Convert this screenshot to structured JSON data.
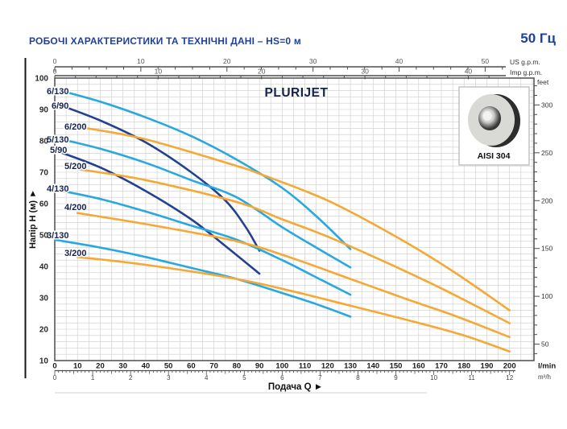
{
  "header": {
    "title": "РОБОЧІ ХАРАКТЕРИСТИКИ ТА ТЕХНІЧНІ ДАНІ  –  HS=0 м",
    "frequency": "50 Гц"
  },
  "aisi_box": {
    "label": "AISI 304"
  },
  "colors": {
    "brand_blue": "#21409a",
    "light_blue": "#29a8e0",
    "dark_blue": "#24418f",
    "orange": "#f6a835",
    "grid": "#cccccc",
    "frame": "#4d4d4d",
    "curve_label": "#15224d",
    "tick_dark": "#1a1a1a",
    "tick_gray": "#555555"
  },
  "chart_data": {
    "type": "line",
    "title": "PLURIJET",
    "xlabel": "Подача Q ►",
    "ylabel": "Напір H (м) ►",
    "x_unit_primary": "l/min",
    "x_range_lmin": [
      0,
      200
    ],
    "ylim_m": [
      10,
      100
    ],
    "grid": "on",
    "axes": {
      "top_us_gpm": {
        "unit": "US g.p.m.",
        "labeled_ticks": [
          0,
          10,
          20,
          30,
          40,
          50
        ],
        "minor_step": 2,
        "minor_max": 52
      },
      "top_imp_gpm": {
        "unit": "Imp g.p.m.",
        "labeled_ticks": [
          0,
          10,
          20,
          30,
          40
        ],
        "minor_step": 2,
        "minor_max": 43
      },
      "bottom_lmin": {
        "unit": "l/min",
        "labeled_ticks": [
          0,
          10,
          20,
          30,
          40,
          50,
          60,
          70,
          80,
          90,
          100,
          110,
          120,
          130,
          140,
          150,
          160,
          170,
          180,
          190,
          200
        ]
      },
      "bottom_m3h": {
        "unit": "m³/h",
        "labeled_ticks": [
          0,
          1,
          2,
          3,
          4,
          5,
          6,
          7,
          8,
          9,
          10,
          11,
          12
        ],
        "minor_step": 0.1
      },
      "left_head_m": {
        "labeled_ticks": [
          100,
          90,
          80,
          70,
          60,
          50,
          40,
          30,
          20,
          10
        ],
        "grid_step_m": 2
      },
      "right_feet": {
        "unit": "feet",
        "labeled_ticks": [
          300,
          250,
          200,
          150,
          100,
          50
        ],
        "minor_step": 10
      }
    },
    "series": [
      {
        "name": "6/130",
        "family": "130",
        "label_pos": [
          58,
          117
        ],
        "points": [
          [
            0,
            96.5
          ],
          [
            20,
            92.5
          ],
          [
            40,
            87.5
          ],
          [
            60,
            81.5
          ],
          [
            80,
            74
          ],
          [
            100,
            65
          ],
          [
            115,
            56
          ],
          [
            130,
            45.5
          ]
        ]
      },
      {
        "name": "6/90",
        "family": "90",
        "label_pos": [
          64,
          135
        ],
        "points": [
          [
            0,
            92
          ],
          [
            20,
            86.5
          ],
          [
            40,
            79.5
          ],
          [
            60,
            70
          ],
          [
            75,
            61
          ],
          [
            84,
            52.5
          ],
          [
            90,
            45
          ]
        ]
      },
      {
        "name": "6/200",
        "family": "200",
        "label_pos": [
          80,
          161
        ],
        "points": [
          [
            10,
            84.5
          ],
          [
            40,
            80.5
          ],
          [
            80,
            72
          ],
          [
            90,
            69.5
          ],
          [
            120,
            61
          ],
          [
            150,
            49.5
          ],
          [
            175,
            38.5
          ],
          [
            200,
            26
          ]
        ]
      },
      {
        "name": "5/130",
        "family": "130",
        "label_pos": [
          58,
          177
        ],
        "points": [
          [
            0,
            81
          ],
          [
            20,
            77.5
          ],
          [
            40,
            73
          ],
          [
            60,
            67.5
          ],
          [
            80,
            62
          ],
          [
            100,
            52.5
          ],
          [
            115,
            46
          ],
          [
            130,
            39.7
          ]
        ]
      },
      {
        "name": "5/90",
        "family": "90",
        "label_pos": [
          62,
          190
        ],
        "points": [
          [
            0,
            77
          ],
          [
            20,
            71.5
          ],
          [
            40,
            64
          ],
          [
            60,
            55
          ],
          [
            75,
            46.5
          ],
          [
            90,
            37.7
          ]
        ]
      },
      {
        "name": "5/200",
        "family": "200",
        "label_pos": [
          80,
          210
        ],
        "points": [
          [
            10,
            71
          ],
          [
            40,
            67.5
          ],
          [
            80,
            60.5
          ],
          [
            100,
            55
          ],
          [
            120,
            49.5
          ],
          [
            145,
            41.5
          ],
          [
            170,
            33
          ],
          [
            200,
            21.9
          ]
        ]
      },
      {
        "name": "4/130",
        "family": "130",
        "label_pos": [
          58,
          238
        ],
        "points": [
          [
            0,
            64.5
          ],
          [
            20,
            61.5
          ],
          [
            40,
            57.5
          ],
          [
            60,
            53
          ],
          [
            80,
            48.5
          ],
          [
            100,
            42
          ],
          [
            115,
            36.5
          ],
          [
            130,
            31
          ]
        ]
      },
      {
        "name": "4/200",
        "family": "200",
        "label_pos": [
          80,
          261
        ],
        "points": [
          [
            10,
            57
          ],
          [
            40,
            53.5
          ],
          [
            80,
            48
          ],
          [
            105,
            42.5
          ],
          [
            130,
            36
          ],
          [
            155,
            29.5
          ],
          [
            175,
            24.5
          ],
          [
            200,
            17.5
          ]
        ]
      },
      {
        "name": "3/130",
        "family": "130",
        "label_pos": [
          58,
          296
        ],
        "points": [
          [
            0,
            48.5
          ],
          [
            20,
            46
          ],
          [
            40,
            43
          ],
          [
            60,
            39.5
          ],
          [
            80,
            36
          ],
          [
            100,
            31.5
          ],
          [
            115,
            28
          ],
          [
            130,
            24
          ]
        ]
      },
      {
        "name": "3/200",
        "family": "200",
        "label_pos": [
          80,
          318
        ],
        "points": [
          [
            10,
            43
          ],
          [
            40,
            40.5
          ],
          [
            80,
            36
          ],
          [
            105,
            32
          ],
          [
            130,
            27.5
          ],
          [
            160,
            22
          ],
          [
            180,
            18
          ],
          [
            200,
            12.9
          ]
        ]
      }
    ]
  }
}
